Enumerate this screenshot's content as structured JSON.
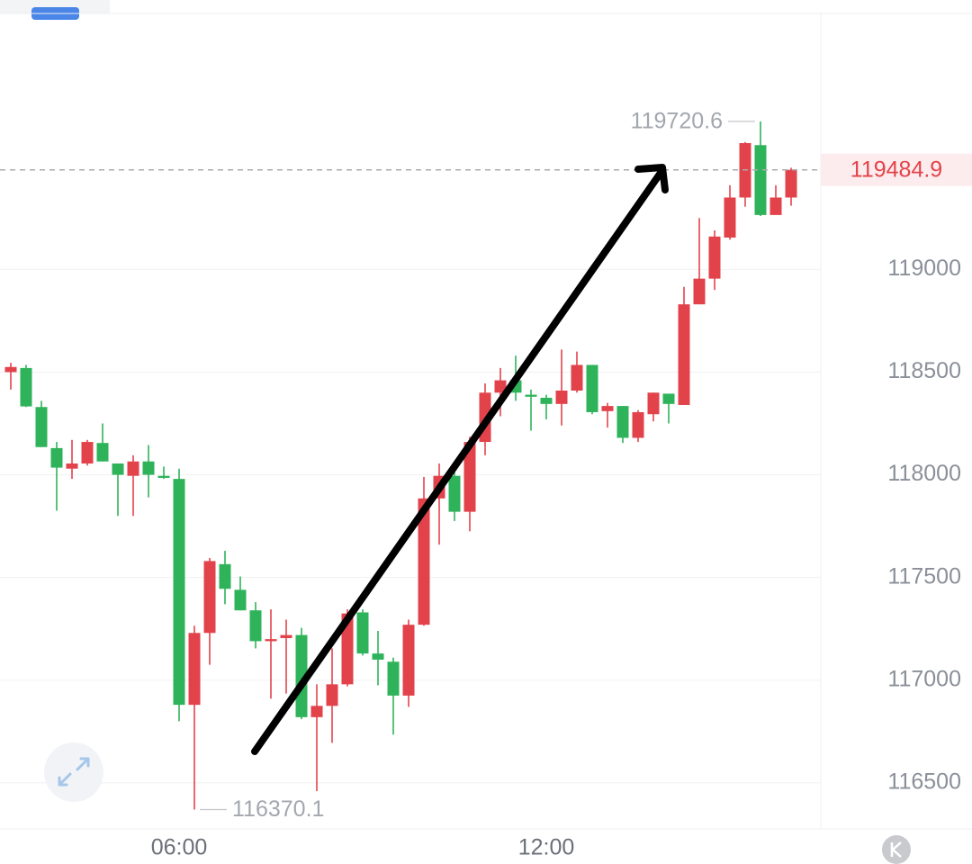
{
  "chart_data": {
    "type": "candlestick",
    "categories": [
      null,
      null,
      null,
      null,
      null,
      null,
      null,
      null,
      null,
      null,
      null,
      "06:00",
      null,
      null,
      null,
      null,
      null,
      null,
      null,
      null,
      null,
      null,
      null,
      null,
      null,
      null,
      null,
      null,
      null,
      null,
      null,
      null,
      null,
      null,
      null,
      "12:00",
      null,
      null,
      null,
      null,
      null,
      null,
      null,
      null,
      null,
      null,
      null,
      null,
      null,
      null,
      null,
      null
    ],
    "open": [
      118500,
      118520,
      118330,
      118130,
      118030,
      118055,
      118155,
      118055,
      117995,
      118065,
      117995,
      117980,
      116880,
      117230,
      117565,
      117440,
      117340,
      117190,
      117205,
      117220,
      116820,
      116875,
      116980,
      117330,
      117130,
      117090,
      116925,
      117270,
      117885,
      117995,
      117820,
      118160,
      118400,
      118460,
      118390,
      118375,
      118345,
      118410,
      118535,
      118310,
      118335,
      118180,
      118295,
      118395,
      118340,
      118830,
      118955,
      119155,
      119350,
      119605,
      119265,
      119350
    ],
    "high": [
      118545,
      118535,
      118360,
      118160,
      118170,
      118170,
      118250,
      118055,
      118095,
      118145,
      118040,
      118030,
      117265,
      117595,
      117630,
      117505,
      117380,
      117345,
      117295,
      117255,
      116980,
      117155,
      117345,
      117345,
      117240,
      117110,
      117295,
      117990,
      118055,
      118030,
      118185,
      118445,
      118520,
      118580,
      118415,
      118390,
      118610,
      118600,
      118535,
      118350,
      118335,
      118315,
      118400,
      118395,
      118915,
      119250,
      119190,
      119410,
      119620,
      119720.6,
      119410,
      119495
    ],
    "low": [
      118415,
      118330,
      118135,
      117825,
      117980,
      118045,
      118065,
      117800,
      117800,
      117890,
      117980,
      116800,
      116370.1,
      117075,
      117370,
      117340,
      117155,
      116910,
      116935,
      116810,
      116460,
      116695,
      116970,
      117120,
      116975,
      116735,
      116870,
      117265,
      117660,
      117775,
      117725,
      118095,
      118285,
      118360,
      118215,
      118270,
      118240,
      118400,
      118295,
      118230,
      118155,
      118160,
      118260,
      118250,
      118340,
      118830,
      118900,
      119145,
      119305,
      119260,
      119265,
      119310
    ],
    "close": [
      118525,
      118333,
      118135,
      118035,
      118055,
      118160,
      118065,
      118000,
      118065,
      118000,
      117985,
      116880,
      117230,
      117580,
      117445,
      117340,
      117190,
      117200,
      117220,
      116820,
      116875,
      116980,
      117325,
      117130,
      117100,
      116925,
      117270,
      117885,
      117995,
      117820,
      118160,
      118400,
      118460,
      118400,
      118380,
      118345,
      118410,
      118535,
      118305,
      118335,
      118180,
      118305,
      118400,
      118345,
      118830,
      118955,
      119160,
      119350,
      119615,
      119265,
      119350,
      119484.9
    ],
    "up_color": "#e2434b",
    "down_color": "#2fb35a",
    "ylim": [
      116276,
      120246
    ],
    "yticks": [
      116500,
      117000,
      117500,
      118000,
      118500,
      119000
    ],
    "grid": true
  }
}
